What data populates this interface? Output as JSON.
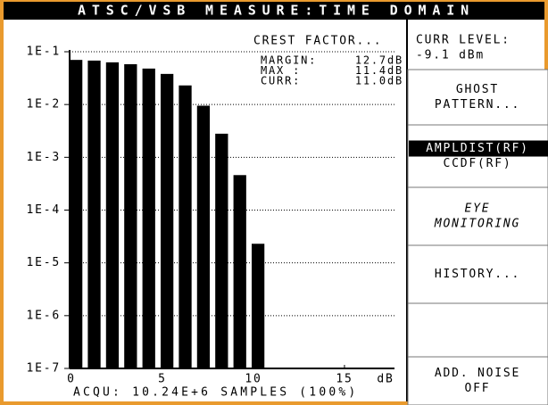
{
  "header": {
    "title": "ATSC/VSB MEASURE:TIME DOMAIN"
  },
  "chart_data": {
    "type": "bar",
    "log_scale": true,
    "grid": true,
    "color": "#000000",
    "x": [
      0,
      1,
      2,
      3,
      4,
      5,
      6,
      7,
      8,
      9,
      10
    ],
    "values": [
      0.07,
      0.068,
      0.063,
      0.058,
      0.048,
      0.038,
      0.023,
      0.0095,
      0.0028,
      0.00046,
      2.3e-05
    ],
    "xlim": [
      0,
      17.6
    ],
    "xticks": [
      0,
      5,
      10,
      15
    ],
    "xlabel": "dB",
    "ylim": [
      1e-07,
      0.1
    ],
    "yticks": [
      {
        "value": 0.1,
        "label": "1E-1"
      },
      {
        "value": 0.01,
        "label": "1E-2"
      },
      {
        "value": 0.001,
        "label": "1E-3"
      },
      {
        "value": 0.0001,
        "label": "1E-4"
      },
      {
        "value": 1e-05,
        "label": "1E-5"
      },
      {
        "value": 1e-06,
        "label": "1E-6"
      },
      {
        "value": 1e-07,
        "label": "1E-7"
      }
    ],
    "annotations": {
      "title": "CREST FACTOR...",
      "rows": [
        [
          "MARGIN:",
          "12.7dB"
        ],
        [
          "MAX :",
          "11.4dB"
        ],
        [
          "CURR:",
          "11.0dB"
        ]
      ]
    }
  },
  "footer": {
    "text": "ACQU: 10.24E+6 SAMPLES (100%)"
  },
  "side_panel": {
    "level_label": "CURR LEVEL:",
    "level_value": "-9.1 dBm",
    "buttons": [
      {
        "lines": [
          "GHOST",
          "PATTERN..."
        ]
      },
      {
        "lines": [
          "AMPLDIST(RF)",
          "CCDF(RF)"
        ],
        "selected_line": 0
      },
      {
        "lines": [
          "EYE",
          "MONITORING"
        ],
        "italic": true
      },
      {
        "lines": [
          "HISTORY..."
        ]
      },
      {
        "lines": []
      },
      {
        "lines": [
          "ADD. NOISE",
          "OFF"
        ]
      }
    ]
  }
}
